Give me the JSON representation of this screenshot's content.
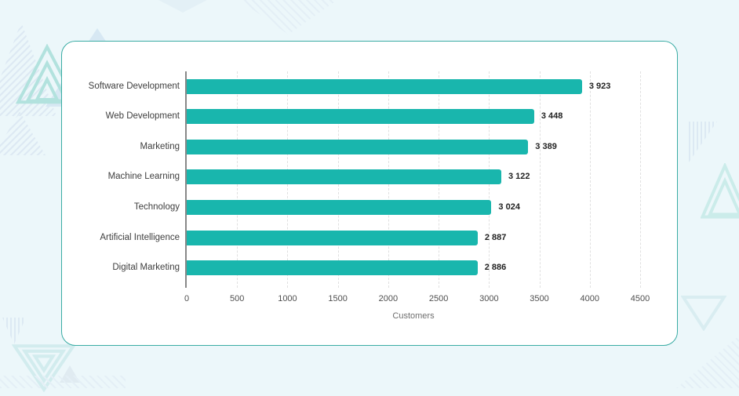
{
  "palette": {
    "page_background": "#ecf7fa",
    "card_background": "#ffffff",
    "card_border": "#3aaca4",
    "bar_color": "#19b6ad",
    "axis_line_color": "#888888",
    "gridline_color": "#e0e0e0",
    "category_label_color": "#3e3e3e",
    "value_label_color": "#222222",
    "tick_label_color": "#4f4f4f",
    "axis_title_color": "#6e6e6e"
  },
  "chart_data": {
    "type": "bar",
    "orientation": "horizontal",
    "title": "",
    "xlabel": "Customers",
    "ylabel": "",
    "categories": [
      "Software Development",
      "Web Development",
      "Marketing",
      "Machine Learning",
      "Technology",
      "Artificial Intelligence",
      "Digital Marketing"
    ],
    "values": [
      3923,
      3448,
      3389,
      3122,
      3024,
      2887,
      2886
    ],
    "value_labels": [
      "3 923",
      "3 448",
      "3 389",
      "3 122",
      "3 024",
      "2 887",
      "2 886"
    ],
    "xlim": [
      0,
      4500
    ],
    "xticks": [
      0,
      500,
      1000,
      1500,
      2000,
      2500,
      3000,
      3500,
      4000,
      4500
    ],
    "xtick_labels": [
      "0",
      "500",
      "1000",
      "1500",
      "2000",
      "2500",
      "3000",
      "3500",
      "4000",
      "4500"
    ],
    "grid": "vertical-dashed",
    "legend": "none",
    "bar_color": "#19b6ad"
  }
}
